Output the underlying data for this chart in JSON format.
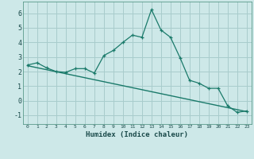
{
  "xlabel": "Humidex (Indice chaleur)",
  "ylabel": "",
  "bg_color": "#cde8e8",
  "grid_color": "#a8cccc",
  "line_color": "#1a7a6a",
  "xlim": [
    -0.5,
    23.5
  ],
  "ylim": [
    -1.6,
    6.8
  ],
  "xticks": [
    0,
    1,
    2,
    3,
    4,
    5,
    6,
    7,
    8,
    9,
    10,
    11,
    12,
    13,
    14,
    15,
    16,
    17,
    18,
    19,
    20,
    21,
    22,
    23
  ],
  "yticks": [
    -1,
    0,
    1,
    2,
    3,
    4,
    5,
    6
  ],
  "jagged_x": [
    0,
    1,
    2,
    3,
    4,
    5,
    6,
    7,
    8,
    9,
    10,
    11,
    12,
    13,
    14,
    15,
    16,
    17,
    18,
    19,
    20,
    21,
    22,
    23
  ],
  "jagged_y": [
    2.45,
    2.6,
    2.25,
    2.0,
    1.95,
    2.2,
    2.2,
    1.9,
    3.1,
    3.45,
    4.0,
    4.5,
    4.35,
    6.25,
    4.85,
    4.35,
    2.95,
    1.4,
    1.2,
    0.85,
    0.85,
    -0.35,
    -0.8,
    -0.7
  ],
  "trend_x": [
    0,
    23
  ],
  "trend_y": [
    2.4,
    -0.75
  ]
}
